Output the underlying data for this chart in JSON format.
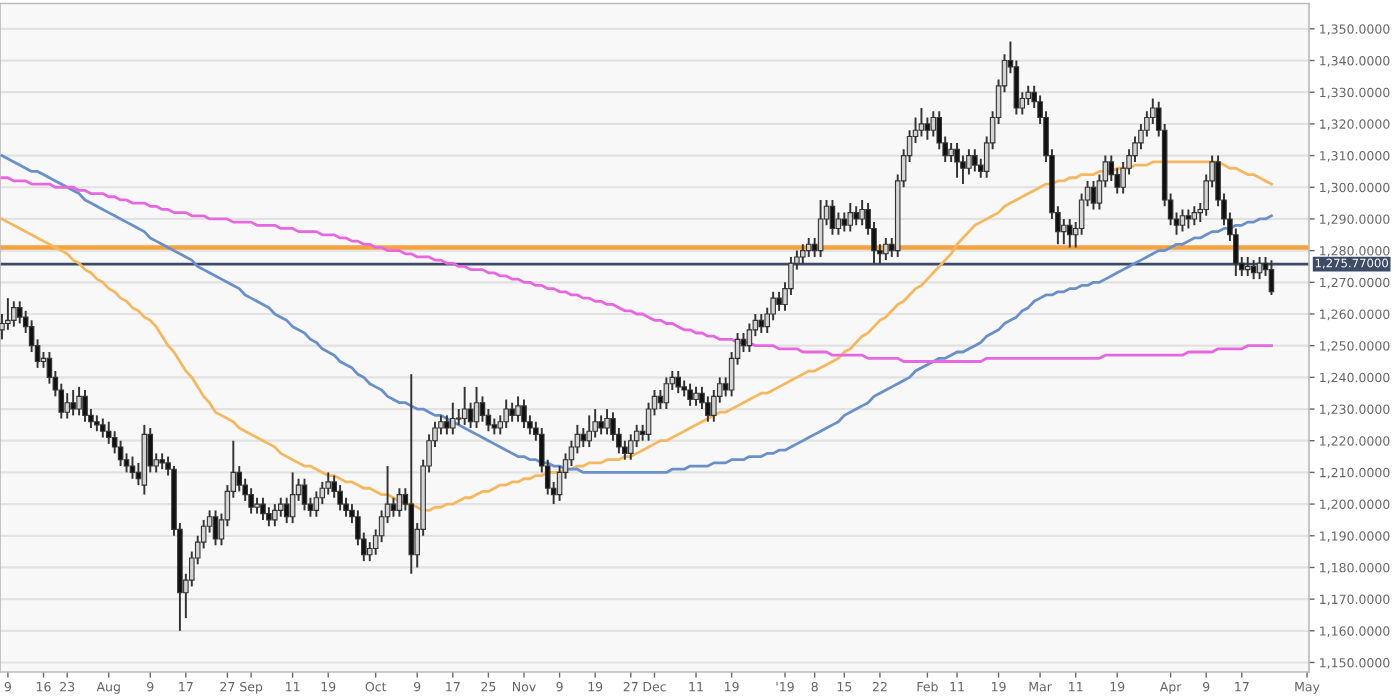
{
  "chart_data": {
    "type": "candlestick",
    "categories": [
      null,
      "9",
      null,
      null,
      null,
      null,
      null,
      "16",
      null,
      null,
      null,
      "23",
      null,
      null,
      null,
      null,
      null,
      null,
      "Aug",
      null,
      null,
      null,
      null,
      null,
      null,
      "9",
      null,
      null,
      null,
      null,
      null,
      "17",
      null,
      null,
      null,
      null,
      null,
      null,
      "27",
      null,
      null,
      null,
      "Sep",
      null,
      null,
      null,
      null,
      null,
      null,
      "11",
      null,
      null,
      null,
      null,
      null,
      "19",
      null,
      null,
      null,
      null,
      null,
      null,
      null,
      "Oct",
      null,
      null,
      null,
      null,
      null,
      null,
      "9",
      null,
      null,
      null,
      null,
      null,
      "17",
      null,
      null,
      null,
      null,
      null,
      "25",
      null,
      null,
      null,
      null,
      null,
      "Nov",
      null,
      null,
      null,
      null,
      null,
      "9",
      null,
      null,
      null,
      null,
      null,
      "19",
      null,
      null,
      null,
      null,
      null,
      "27",
      null,
      null,
      null,
      "Dec",
      null,
      null,
      null,
      null,
      null,
      null,
      "11",
      null,
      null,
      null,
      null,
      null,
      "19",
      null,
      null,
      null,
      null,
      null,
      null,
      null,
      null,
      "'19",
      null,
      null,
      null,
      null,
      "8",
      null,
      null,
      null,
      null,
      "15",
      null,
      null,
      null,
      null,
      null,
      "22",
      null,
      null,
      null,
      null,
      null,
      null,
      null,
      "Feb",
      null,
      null,
      null,
      null,
      "11",
      null,
      null,
      null,
      null,
      null,
      null,
      "19",
      null,
      null,
      null,
      null,
      null,
      null,
      "Mar",
      null,
      null,
      null,
      null,
      null,
      "11",
      null,
      null,
      null,
      null,
      null,
      null,
      "19",
      null,
      null,
      null,
      null,
      null,
      null,
      null,
      null,
      "Apr",
      null,
      null,
      null,
      null,
      null,
      "9",
      null,
      null,
      null,
      null,
      null,
      "17",
      null,
      null,
      null,
      null,
      null,
      null,
      null,
      null,
      null,
      null,
      "May"
    ],
    "ohlc": [
      [
        1255,
        1260,
        1252,
        1257
      ],
      [
        1257,
        1265,
        1255,
        1258
      ],
      [
        1258,
        1264,
        1256,
        1262
      ],
      [
        1262,
        1264,
        1257,
        1259
      ],
      [
        1259,
        1261,
        1254,
        1256
      ],
      [
        1256,
        1258,
        1248,
        1250
      ],
      [
        1250,
        1252,
        1243,
        1245
      ],
      [
        1245,
        1248,
        1243,
        1246
      ],
      [
        1246,
        1248,
        1238,
        1240
      ],
      [
        1240,
        1242,
        1234,
        1236
      ],
      [
        1236,
        1238,
        1227,
        1229
      ],
      [
        1229,
        1235,
        1227,
        1232
      ],
      [
        1232,
        1236,
        1228,
        1230
      ],
      [
        1230,
        1237,
        1228,
        1234
      ],
      [
        1234,
        1236,
        1226,
        1228
      ],
      [
        1228,
        1230,
        1224,
        1226
      ],
      [
        1226,
        1228,
        1223,
        1225
      ],
      [
        1225,
        1227,
        1221,
        1223
      ],
      [
        1223,
        1226,
        1219,
        1221
      ],
      [
        1221,
        1223,
        1216,
        1218
      ],
      [
        1218,
        1220,
        1212,
        1214
      ],
      [
        1214,
        1216,
        1210,
        1212
      ],
      [
        1212,
        1215,
        1208,
        1210
      ],
      [
        1210,
        1213,
        1206,
        1208
      ],
      [
        1206,
        1225,
        1203,
        1222
      ],
      [
        1222,
        1224,
        1210,
        1212
      ],
      [
        1212,
        1216,
        1210,
        1214
      ],
      [
        1214,
        1216,
        1211,
        1213
      ],
      [
        1213,
        1215,
        1209,
        1211
      ],
      [
        1211,
        1212,
        1190,
        1192
      ],
      [
        1192,
        1194,
        1160,
        1172
      ],
      [
        1172,
        1178,
        1164,
        1176
      ],
      [
        1176,
        1185,
        1174,
        1183
      ],
      [
        1183,
        1190,
        1181,
        1188
      ],
      [
        1188,
        1195,
        1186,
        1193
      ],
      [
        1193,
        1198,
        1191,
        1196
      ],
      [
        1196,
        1198,
        1187,
        1189
      ],
      [
        1189,
        1197,
        1187,
        1195
      ],
      [
        1195,
        1206,
        1193,
        1204
      ],
      [
        1204,
        1220,
        1202,
        1210
      ],
      [
        1210,
        1212,
        1204,
        1206
      ],
      [
        1206,
        1208,
        1201,
        1203
      ],
      [
        1203,
        1205,
        1197,
        1199
      ],
      [
        1199,
        1202,
        1197,
        1200
      ],
      [
        1200,
        1202,
        1195,
        1197
      ],
      [
        1197,
        1199,
        1193,
        1195
      ],
      [
        1195,
        1200,
        1193,
        1198
      ],
      [
        1198,
        1202,
        1196,
        1200
      ],
      [
        1200,
        1202,
        1194,
        1196
      ],
      [
        1196,
        1210,
        1194,
        1203
      ],
      [
        1203,
        1208,
        1201,
        1206
      ],
      [
        1206,
        1208,
        1198,
        1200
      ],
      [
        1200,
        1202,
        1196,
        1198
      ],
      [
        1198,
        1204,
        1196,
        1202
      ],
      [
        1202,
        1207,
        1200,
        1205
      ],
      [
        1205,
        1210,
        1203,
        1207
      ],
      [
        1207,
        1209,
        1202,
        1204
      ],
      [
        1204,
        1206,
        1198,
        1200
      ],
      [
        1200,
        1202,
        1196,
        1198
      ],
      [
        1198,
        1200,
        1194,
        1196
      ],
      [
        1196,
        1198,
        1187,
        1189
      ],
      [
        1189,
        1191,
        1182,
        1184
      ],
      [
        1184,
        1188,
        1182,
        1186
      ],
      [
        1186,
        1192,
        1184,
        1190
      ],
      [
        1190,
        1198,
        1188,
        1196
      ],
      [
        1196,
        1212,
        1194,
        1200
      ],
      [
        1200,
        1202,
        1196,
        1198
      ],
      [
        1198,
        1205,
        1196,
        1203
      ],
      [
        1203,
        1205,
        1198,
        1200
      ],
      [
        1200,
        1241,
        1178,
        1184
      ],
      [
        1184,
        1194,
        1180,
        1192
      ],
      [
        1192,
        1214,
        1190,
        1212
      ],
      [
        1212,
        1222,
        1210,
        1220
      ],
      [
        1220,
        1226,
        1218,
        1224
      ],
      [
        1224,
        1228,
        1222,
        1226
      ],
      [
        1226,
        1228,
        1222,
        1224
      ],
      [
        1224,
        1232,
        1222,
        1227
      ],
      [
        1227,
        1230,
        1225,
        1227
      ],
      [
        1227,
        1237,
        1225,
        1230
      ],
      [
        1230,
        1232,
        1224,
        1226
      ],
      [
        1226,
        1237,
        1224,
        1232
      ],
      [
        1232,
        1234,
        1226,
        1228
      ],
      [
        1228,
        1230,
        1223,
        1225
      ],
      [
        1225,
        1227,
        1222,
        1224
      ],
      [
        1224,
        1228,
        1222,
        1226
      ],
      [
        1226,
        1233,
        1224,
        1230
      ],
      [
        1230,
        1232,
        1226,
        1228
      ],
      [
        1228,
        1234,
        1226,
        1231
      ],
      [
        1231,
        1233,
        1224,
        1226
      ],
      [
        1226,
        1228,
        1222,
        1224
      ],
      [
        1224,
        1226,
        1220,
        1222
      ],
      [
        1222,
        1224,
        1210,
        1212
      ],
      [
        1212,
        1214,
        1203,
        1205
      ],
      [
        1205,
        1207,
        1200,
        1203
      ],
      [
        1203,
        1212,
        1201,
        1210
      ],
      [
        1210,
        1216,
        1208,
        1214
      ],
      [
        1214,
        1220,
        1212,
        1218
      ],
      [
        1218,
        1225,
        1216,
        1222
      ],
      [
        1222,
        1224,
        1218,
        1220
      ],
      [
        1220,
        1228,
        1218,
        1223
      ],
      [
        1223,
        1230,
        1221,
        1226
      ],
      [
        1226,
        1228,
        1222,
        1224
      ],
      [
        1224,
        1230,
        1222,
        1227
      ],
      [
        1227,
        1229,
        1220,
        1222
      ],
      [
        1222,
        1224,
        1216,
        1218
      ],
      [
        1218,
        1220,
        1214,
        1216
      ],
      [
        1216,
        1222,
        1214,
        1220
      ],
      [
        1220,
        1225,
        1218,
        1223
      ],
      [
        1223,
        1225,
        1220,
        1222
      ],
      [
        1222,
        1232,
        1220,
        1230
      ],
      [
        1230,
        1236,
        1228,
        1234
      ],
      [
        1234,
        1236,
        1230,
        1232
      ],
      [
        1232,
        1240,
        1230,
        1238
      ],
      [
        1238,
        1242,
        1236,
        1240
      ],
      [
        1240,
        1242,
        1235,
        1237
      ],
      [
        1237,
        1239,
        1234,
        1236
      ],
      [
        1236,
        1238,
        1231,
        1233
      ],
      [
        1233,
        1237,
        1231,
        1235
      ],
      [
        1235,
        1237,
        1230,
        1232
      ],
      [
        1232,
        1234,
        1226,
        1228
      ],
      [
        1228,
        1236,
        1226,
        1234
      ],
      [
        1234,
        1240,
        1232,
        1238
      ],
      [
        1238,
        1240,
        1234,
        1236
      ],
      [
        1236,
        1248,
        1234,
        1246
      ],
      [
        1246,
        1254,
        1244,
        1252
      ],
      [
        1252,
        1254,
        1248,
        1250
      ],
      [
        1250,
        1257,
        1248,
        1255
      ],
      [
        1255,
        1260,
        1253,
        1258
      ],
      [
        1258,
        1260,
        1254,
        1256
      ],
      [
        1256,
        1262,
        1254,
        1260
      ],
      [
        1260,
        1267,
        1258,
        1265
      ],
      [
        1265,
        1267,
        1261,
        1263
      ],
      [
        1263,
        1270,
        1261,
        1268
      ],
      [
        1268,
        1278,
        1266,
        1276
      ],
      [
        1276,
        1280,
        1274,
        1278
      ],
      [
        1278,
        1282,
        1276,
        1280
      ],
      [
        1280,
        1284,
        1278,
        1282
      ],
      [
        1282,
        1284,
        1278,
        1280
      ],
      [
        1280,
        1296,
        1278,
        1290
      ],
      [
        1290,
        1296,
        1288,
        1294
      ],
      [
        1294,
        1296,
        1285,
        1287
      ],
      [
        1287,
        1292,
        1285,
        1290
      ],
      [
        1290,
        1292,
        1286,
        1288
      ],
      [
        1288,
        1295,
        1286,
        1292
      ],
      [
        1292,
        1294,
        1288,
        1290
      ],
      [
        1290,
        1296,
        1288,
        1293
      ],
      [
        1293,
        1295,
        1285,
        1287
      ],
      [
        1287,
        1289,
        1276,
        1280
      ],
      [
        1280,
        1282,
        1276,
        1279
      ],
      [
        1279,
        1284,
        1277,
        1282
      ],
      [
        1282,
        1284,
        1278,
        1280
      ],
      [
        1280,
        1304,
        1278,
        1302
      ],
      [
        1302,
        1312,
        1300,
        1310
      ],
      [
        1310,
        1318,
        1308,
        1316
      ],
      [
        1316,
        1322,
        1314,
        1318
      ],
      [
        1318,
        1325,
        1316,
        1320
      ],
      [
        1320,
        1322,
        1315,
        1318
      ],
      [
        1318,
        1324,
        1316,
        1322
      ],
      [
        1322,
        1324,
        1312,
        1314
      ],
      [
        1314,
        1316,
        1308,
        1310
      ],
      [
        1310,
        1314,
        1308,
        1312
      ],
      [
        1312,
        1314,
        1303,
        1308
      ],
      [
        1308,
        1310,
        1301,
        1306
      ],
      [
        1306,
        1312,
        1304,
        1310
      ],
      [
        1310,
        1312,
        1305,
        1307
      ],
      [
        1307,
        1309,
        1303,
        1305
      ],
      [
        1305,
        1316,
        1303,
        1314
      ],
      [
        1314,
        1324,
        1312,
        1322
      ],
      [
        1322,
        1334,
        1320,
        1332
      ],
      [
        1332,
        1342,
        1330,
        1340
      ],
      [
        1340,
        1346,
        1336,
        1338
      ],
      [
        1338,
        1340,
        1323,
        1325
      ],
      [
        1325,
        1330,
        1323,
        1328
      ],
      [
        1328,
        1332,
        1326,
        1330
      ],
      [
        1330,
        1332,
        1325,
        1327
      ],
      [
        1327,
        1329,
        1320,
        1322
      ],
      [
        1322,
        1324,
        1308,
        1310
      ],
      [
        1310,
        1312,
        1290,
        1292
      ],
      [
        1292,
        1294,
        1282,
        1286
      ],
      [
        1286,
        1290,
        1282,
        1288
      ],
      [
        1288,
        1290,
        1281,
        1285
      ],
      [
        1285,
        1289,
        1281,
        1287
      ],
      [
        1287,
        1298,
        1285,
        1296
      ],
      [
        1296,
        1302,
        1294,
        1300
      ],
      [
        1300,
        1302,
        1293,
        1295
      ],
      [
        1295,
        1304,
        1293,
        1302
      ],
      [
        1302,
        1310,
        1300,
        1308
      ],
      [
        1308,
        1310,
        1302,
        1304
      ],
      [
        1304,
        1306,
        1298,
        1300
      ],
      [
        1300,
        1308,
        1298,
        1306
      ],
      [
        1306,
        1312,
        1304,
        1310
      ],
      [
        1310,
        1316,
        1308,
        1314
      ],
      [
        1314,
        1320,
        1312,
        1318
      ],
      [
        1318,
        1324,
        1316,
        1322
      ],
      [
        1322,
        1328,
        1320,
        1325
      ],
      [
        1325,
        1327,
        1316,
        1318
      ],
      [
        1318,
        1320,
        1294,
        1296
      ],
      [
        1296,
        1298,
        1288,
        1290
      ],
      [
        1290,
        1292,
        1285,
        1288
      ],
      [
        1288,
        1293,
        1286,
        1291
      ],
      [
        1291,
        1293,
        1287,
        1290
      ],
      [
        1290,
        1294,
        1288,
        1292
      ],
      [
        1292,
        1295,
        1289,
        1293
      ],
      [
        1293,
        1304,
        1291,
        1302
      ],
      [
        1302,
        1310,
        1300,
        1308
      ],
      [
        1308,
        1310,
        1294,
        1296
      ],
      [
        1296,
        1298,
        1288,
        1290
      ],
      [
        1290,
        1292,
        1283,
        1285
      ],
      [
        1285,
        1287,
        1272,
        1276
      ],
      [
        1276,
        1278,
        1272,
        1274
      ],
      [
        1274,
        1278,
        1272,
        1275
      ],
      [
        1275,
        1277,
        1271,
        1273
      ],
      [
        1273,
        1278,
        1271,
        1276
      ],
      [
        1276,
        1278,
        1272,
        1274
      ],
      [
        1274,
        1277,
        1266,
        1267
      ],
      null,
      null,
      null,
      null,
      null,
      null
    ],
    "series": [
      {
        "type": "line",
        "color": "#f5b861",
        "values": [
          1290,
          1289,
          1288,
          1287,
          1286,
          1285,
          1284,
          1283,
          1282,
          1281,
          1280,
          1279,
          1277,
          1276,
          1274,
          1273,
          1271,
          1270,
          1268,
          1267,
          1265,
          1264,
          1262,
          1261,
          1259,
          1258,
          1256,
          1253,
          1250,
          1248,
          1245,
          1242,
          1240,
          1237,
          1234,
          1232,
          1229,
          1228,
          1227,
          1226,
          1224,
          1223,
          1222,
          1221,
          1220,
          1219,
          1218,
          1216,
          1215,
          1214,
          1213,
          1212,
          1212,
          1211,
          1210,
          1209,
          1209,
          1208,
          1207,
          1207,
          1206,
          1205,
          1205,
          1204,
          1203,
          1203,
          1202,
          1201,
          1200,
          1200,
          1199,
          1198,
          1198,
          1199,
          1199,
          1200,
          1200,
          1201,
          1202,
          1202,
          1203,
          1204,
          1204,
          1205,
          1206,
          1206,
          1207,
          1207,
          1208,
          1208,
          1209,
          1209,
          1210,
          1210,
          1210,
          1211,
          1211,
          1212,
          1212,
          1213,
          1213,
          1213,
          1214,
          1214,
          1214,
          1215,
          1215,
          1216,
          1217,
          1218,
          1219,
          1220,
          1220,
          1221,
          1222,
          1223,
          1224,
          1225,
          1226,
          1227,
          1228,
          1229,
          1229,
          1230,
          1231,
          1232,
          1233,
          1234,
          1235,
          1235,
          1236,
          1237,
          1238,
          1239,
          1240,
          1241,
          1242,
          1242,
          1243,
          1244,
          1245,
          1246,
          1248,
          1249,
          1251,
          1253,
          1254,
          1256,
          1258,
          1259,
          1261,
          1263,
          1264,
          1266,
          1268,
          1269,
          1271,
          1273,
          1275,
          1277,
          1279,
          1282,
          1284,
          1286,
          1288,
          1289,
          1290,
          1291,
          1292,
          1294,
          1295,
          1296,
          1297,
          1298,
          1299,
          1300,
          1301,
          1301,
          1302,
          1302,
          1303,
          1303,
          1304,
          1304,
          1304,
          1305,
          1305,
          1305,
          1306,
          1306,
          1306,
          1307,
          1307,
          1307,
          1308,
          1308,
          1308,
          1308,
          1308,
          1308,
          1308,
          1308,
          1308,
          1308,
          1308,
          1308,
          1307,
          1306,
          1306,
          1305,
          1304,
          1304,
          1303,
          1302,
          1301,
          null,
          null,
          null,
          null,
          null,
          null
        ]
      },
      {
        "type": "line",
        "color": "#6a8fc9",
        "values": [
          1310,
          1309,
          1308,
          1307,
          1306,
          1305,
          1305,
          1304,
          1303,
          1302,
          1301,
          1300,
          1299,
          1298,
          1296,
          1295,
          1294,
          1293,
          1292,
          1291,
          1290,
          1289,
          1288,
          1287,
          1286,
          1284,
          1283,
          1282,
          1281,
          1280,
          1279,
          1278,
          1277,
          1275,
          1274,
          1273,
          1272,
          1271,
          1270,
          1269,
          1268,
          1266,
          1265,
          1264,
          1263,
          1262,
          1260,
          1259,
          1258,
          1256,
          1255,
          1254,
          1252,
          1251,
          1249,
          1248,
          1247,
          1245,
          1244,
          1243,
          1241,
          1240,
          1238,
          1237,
          1236,
          1234,
          1233,
          1232,
          1232,
          1231,
          1230,
          1230,
          1229,
          1228,
          1228,
          1227,
          1226,
          1225,
          1224,
          1223,
          1222,
          1221,
          1220,
          1219,
          1218,
          1217,
          1216,
          1215,
          1215,
          1214,
          1214,
          1213,
          1213,
          1212,
          1212,
          1211,
          1211,
          1211,
          1210,
          1210,
          1210,
          1210,
          1210,
          1210,
          1210,
          1210,
          1210,
          1210,
          1210,
          1210,
          1210,
          1210,
          1210,
          1211,
          1211,
          1211,
          1212,
          1212,
          1212,
          1212,
          1213,
          1213,
          1213,
          1214,
          1214,
          1214,
          1215,
          1215,
          1215,
          1216,
          1216,
          1217,
          1217,
          1218,
          1219,
          1220,
          1221,
          1222,
          1223,
          1224,
          1225,
          1226,
          1228,
          1229,
          1230,
          1231,
          1232,
          1234,
          1235,
          1236,
          1237,
          1238,
          1239,
          1240,
          1242,
          1243,
          1244,
          1245,
          1246,
          1246,
          1247,
          1248,
          1248,
          1249,
          1250,
          1251,
          1253,
          1254,
          1255,
          1257,
          1258,
          1259,
          1261,
          1262,
          1264,
          1265,
          1266,
          1266,
          1267,
          1267,
          1268,
          1268,
          1269,
          1269,
          1270,
          1270,
          1271,
          1272,
          1273,
          1274,
          1275,
          1276,
          1277,
          1278,
          1279,
          1280,
          1280,
          1281,
          1282,
          1282,
          1283,
          1284,
          1284,
          1285,
          1286,
          1286,
          1287,
          1287,
          1288,
          1288,
          1289,
          1289,
          1290,
          1290,
          1291,
          null,
          null,
          null,
          null,
          null,
          null
        ]
      },
      {
        "type": "line",
        "color": "#e667e0",
        "values": [
          1303,
          1303,
          1302,
          1302,
          1302,
          1301,
          1301,
          1301,
          1301,
          1300,
          1300,
          1300,
          1300,
          1299,
          1299,
          1298,
          1298,
          1298,
          1297,
          1297,
          1296,
          1296,
          1295,
          1295,
          1295,
          1294,
          1294,
          1293,
          1293,
          1292,
          1292,
          1292,
          1291,
          1291,
          1291,
          1290,
          1290,
          1290,
          1290,
          1289,
          1289,
          1289,
          1289,
          1288,
          1288,
          1288,
          1288,
          1287,
          1287,
          1287,
          1286,
          1286,
          1286,
          1286,
          1285,
          1285,
          1285,
          1284,
          1284,
          1283,
          1283,
          1282,
          1282,
          1281,
          1281,
          1280,
          1280,
          1280,
          1279,
          1279,
          1278,
          1278,
          1278,
          1277,
          1277,
          1276,
          1276,
          1275,
          1275,
          1274,
          1274,
          1274,
          1273,
          1273,
          1272,
          1272,
          1271,
          1271,
          1270,
          1270,
          1269,
          1269,
          1268,
          1268,
          1267,
          1267,
          1266,
          1266,
          1265,
          1265,
          1264,
          1264,
          1263,
          1263,
          1262,
          1261,
          1261,
          1260,
          1260,
          1259,
          1258,
          1258,
          1257,
          1257,
          1256,
          1255,
          1255,
          1254,
          1254,
          1253,
          1253,
          1252,
          1252,
          1252,
          1251,
          1251,
          1251,
          1250,
          1250,
          1250,
          1250,
          1249,
          1249,
          1249,
          1249,
          1248,
          1248,
          1248,
          1248,
          1248,
          1247,
          1247,
          1247,
          1247,
          1247,
          1247,
          1246,
          1246,
          1246,
          1246,
          1246,
          1246,
          1245,
          1245,
          1245,
          1245,
          1245,
          1245,
          1245,
          1245,
          1245,
          1245,
          1245,
          1245,
          1245,
          1245,
          1246,
          1246,
          1246,
          1246,
          1246,
          1246,
          1246,
          1246,
          1246,
          1246,
          1246,
          1246,
          1246,
          1246,
          1246,
          1246,
          1246,
          1246,
          1246,
          1246,
          1247,
          1247,
          1247,
          1247,
          1247,
          1247,
          1247,
          1247,
          1247,
          1247,
          1247,
          1247,
          1247,
          1247,
          1248,
          1248,
          1248,
          1248,
          1248,
          1249,
          1249,
          1249,
          1249,
          1249,
          1250,
          1250,
          1250,
          1250,
          1250,
          null,
          null,
          null,
          null,
          null,
          null
        ]
      }
    ],
    "ref_lines": [
      {
        "axis": "y",
        "value": 1281,
        "color": "#f4a340"
      },
      {
        "axis": "y",
        "value": 1275.77,
        "label": "1,275.77000",
        "color": "#3d4b66"
      }
    ],
    "ylim": [
      1147,
      1358
    ],
    "yticks": [
      {
        "value": 1150,
        "label": "1,150.0000"
      },
      {
        "value": 1160,
        "label": "1,160.0000"
      },
      {
        "value": 1170,
        "label": "1,170.0000"
      },
      {
        "value": 1180,
        "label": "1,180.0000"
      },
      {
        "value": 1190,
        "label": "1,190.0000"
      },
      {
        "value": 1200,
        "label": "1,200.0000"
      },
      {
        "value": 1210,
        "label": "1,210.0000"
      },
      {
        "value": 1220,
        "label": "1,220.0000"
      },
      {
        "value": 1230,
        "label": "1,230.0000"
      },
      {
        "value": 1240,
        "label": "1,240.0000"
      },
      {
        "value": 1250,
        "label": "1,250.0000"
      },
      {
        "value": 1260,
        "label": "1,260.0000"
      },
      {
        "value": 1270,
        "label": "1,270.0000"
      },
      {
        "value": 1280,
        "label": "1,280.0000"
      },
      {
        "value": 1290,
        "label": "1,290.0000"
      },
      {
        "value": 1300,
        "label": "1,300.0000"
      },
      {
        "value": 1310,
        "label": "1,310.0000"
      },
      {
        "value": 1320,
        "label": "1,320.0000"
      },
      {
        "value": 1330,
        "label": "1,330.0000"
      },
      {
        "value": 1340,
        "label": "1,340.0000"
      },
      {
        "value": 1350,
        "label": "1,350.0000"
      }
    ],
    "grid": "y",
    "legend": false
  }
}
